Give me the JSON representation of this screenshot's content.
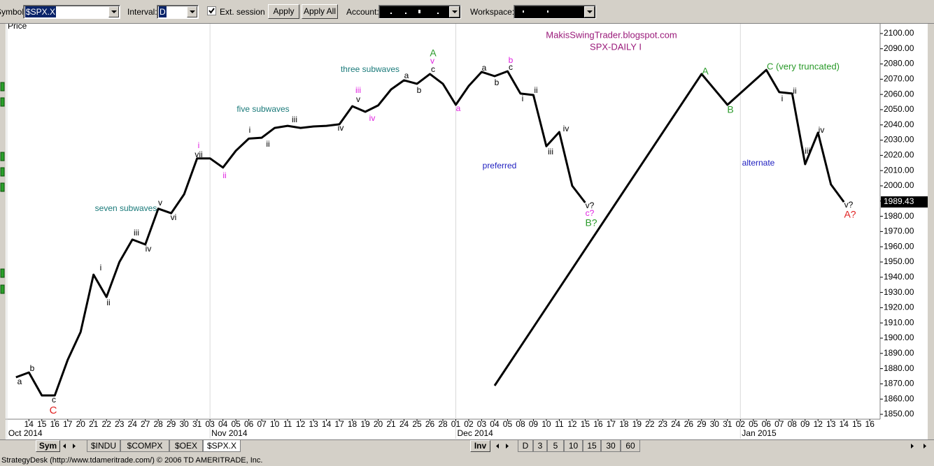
{
  "toolbar": {
    "symbol_label": "Symbol:",
    "symbol": "$SPX.X",
    "interval_label": "Interval:",
    "interval": "D",
    "ext_session": "Ext. session",
    "apply": "Apply",
    "apply_all": "Apply All",
    "account_label": "Account:",
    "workspace_label": "Workspace:"
  },
  "chart_data": {
    "type": "line",
    "y_axis_label": "Price",
    "ylim": [
      1846.8,
      2106.4
    ],
    "yticks": [
      {
        "value": 1850,
        "label": "1850.00"
      },
      {
        "value": 1860,
        "label": "1860.00"
      },
      {
        "value": 1870,
        "label": "1870.00"
      },
      {
        "value": 1880,
        "label": "1880.00"
      },
      {
        "value": 1890,
        "label": "1890.00"
      },
      {
        "value": 1900,
        "label": "1900.00"
      },
      {
        "value": 1910,
        "label": "1910.00"
      },
      {
        "value": 1920,
        "label": "1920.00"
      },
      {
        "value": 1930,
        "label": "1930.00"
      },
      {
        "value": 1940,
        "label": "1940.00"
      },
      {
        "value": 1950,
        "label": "1950.00"
      },
      {
        "value": 1960,
        "label": "1960.00"
      },
      {
        "value": 1970,
        "label": "1970.00"
      },
      {
        "value": 1980,
        "label": "1980.00"
      },
      {
        "value": 1990,
        "label": "1990.00"
      },
      {
        "value": 2000,
        "label": "2000.00"
      },
      {
        "value": 2010,
        "label": "2010.00"
      },
      {
        "value": 2020,
        "label": "2020.00"
      },
      {
        "value": 2030,
        "label": "2030.00"
      },
      {
        "value": 2040,
        "label": "2040.00"
      },
      {
        "value": 2050,
        "label": "2050.00"
      },
      {
        "value": 2060,
        "label": "2060.00"
      },
      {
        "value": 2070,
        "label": "2070.00"
      },
      {
        "value": 2080,
        "label": "2080.00"
      },
      {
        "value": 2090,
        "label": "2090.00"
      },
      {
        "value": 2100,
        "label": "2100.00"
      }
    ],
    "xlim": [
      -0.8,
      66.8
    ],
    "xticks": [
      {
        "value": 1,
        "label": "14"
      },
      {
        "value": 2,
        "label": "15"
      },
      {
        "value": 3,
        "label": "16"
      },
      {
        "value": 4,
        "label": "17"
      },
      {
        "value": 5,
        "label": "20"
      },
      {
        "value": 6,
        "label": "21"
      },
      {
        "value": 7,
        "label": "22"
      },
      {
        "value": 8,
        "label": "23"
      },
      {
        "value": 9,
        "label": "24"
      },
      {
        "value": 10,
        "label": "27"
      },
      {
        "value": 11,
        "label": "28"
      },
      {
        "value": 12,
        "label": "29"
      },
      {
        "value": 13,
        "label": "30"
      },
      {
        "value": 14,
        "label": "31"
      },
      {
        "value": 15,
        "label": "03"
      },
      {
        "value": 16,
        "label": "04"
      },
      {
        "value": 17,
        "label": "05"
      },
      {
        "value": 18,
        "label": "06"
      },
      {
        "value": 19,
        "label": "07"
      },
      {
        "value": 20,
        "label": "10"
      },
      {
        "value": 21,
        "label": "11"
      },
      {
        "value": 22,
        "label": "12"
      },
      {
        "value": 23,
        "label": "13"
      },
      {
        "value": 24,
        "label": "14"
      },
      {
        "value": 25,
        "label": "17"
      },
      {
        "value": 26,
        "label": "18"
      },
      {
        "value": 27,
        "label": "19"
      },
      {
        "value": 28,
        "label": "20"
      },
      {
        "value": 29,
        "label": "21"
      },
      {
        "value": 30,
        "label": "24"
      },
      {
        "value": 31,
        "label": "25"
      },
      {
        "value": 32,
        "label": "26"
      },
      {
        "value": 33,
        "label": "28"
      },
      {
        "value": 34,
        "label": "01"
      },
      {
        "value": 35,
        "label": "02"
      },
      {
        "value": 36,
        "label": "03"
      },
      {
        "value": 37,
        "label": "04"
      },
      {
        "value": 38,
        "label": "05"
      },
      {
        "value": 39,
        "label": "08"
      },
      {
        "value": 40,
        "label": "09"
      },
      {
        "value": 41,
        "label": "10"
      },
      {
        "value": 42,
        "label": "11"
      },
      {
        "value": 43,
        "label": "12"
      },
      {
        "value": 44,
        "label": "15"
      },
      {
        "value": 45,
        "label": "16"
      },
      {
        "value": 46,
        "label": "17"
      },
      {
        "value": 47,
        "label": "18"
      },
      {
        "value": 48,
        "label": "19"
      },
      {
        "value": 49,
        "label": "22"
      },
      {
        "value": 50,
        "label": "23"
      },
      {
        "value": 51,
        "label": "24"
      },
      {
        "value": 52,
        "label": "26"
      },
      {
        "value": 53,
        "label": "29"
      },
      {
        "value": 54,
        "label": "30"
      },
      {
        "value": 55,
        "label": "31"
      },
      {
        "value": 56,
        "label": "02"
      },
      {
        "value": 57,
        "label": "05"
      },
      {
        "value": 58,
        "label": "06"
      },
      {
        "value": 59,
        "label": "07"
      },
      {
        "value": 60,
        "label": "08"
      },
      {
        "value": 61,
        "label": "09"
      },
      {
        "value": 62,
        "label": "12"
      },
      {
        "value": 63,
        "label": "13"
      },
      {
        "value": 64,
        "label": "14"
      },
      {
        "value": 65,
        "label": "15"
      },
      {
        "value": 66,
        "label": "16"
      }
    ],
    "month_ticks": [
      {
        "value": -0.7,
        "label": "Oct 2014"
      },
      {
        "value": 15,
        "label": "Nov 2014"
      },
      {
        "value": 34,
        "label": "Dec 2014"
      },
      {
        "value": 56,
        "label": "Jan 2015"
      }
    ],
    "series": [
      {
        "color": "#000000",
        "x": [
          0,
          1,
          2,
          3,
          4,
          5,
          6,
          7,
          8,
          9,
          10,
          11,
          12,
          13,
          14,
          15,
          16,
          17,
          18,
          19,
          20,
          21,
          22,
          23,
          24,
          25,
          26,
          27,
          28,
          29,
          30,
          31,
          32,
          33,
          34,
          35,
          36,
          37,
          38,
          39,
          40,
          41,
          42,
          43,
          44
        ],
        "values": [
          1874.3,
          1877.5,
          1862.4,
          1862.4,
          1885.8,
          1904,
          1941.7,
          1927,
          1950,
          1964.7,
          1961.5,
          1985,
          1982,
          1994.5,
          2018,
          2018,
          2012,
          2023,
          2031,
          2031.6,
          2038,
          2039.4,
          2038,
          2039,
          2039.4,
          2040.4,
          2052.3,
          2048.6,
          2052.8,
          2063.3,
          2069.3,
          2067,
          2073.4,
          2067,
          2053.2,
          2065.6,
          2074.8,
          2072,
          2075.2,
          2060.6,
          2059.6,
          2026,
          2035.3,
          2000,
          1989
        ]
      },
      {
        "color": "#000000",
        "x": [
          37,
          53,
          55,
          58,
          59,
          60,
          61,
          62,
          63,
          64
        ],
        "values": [
          1868.8,
          2073.4,
          2053.2,
          2076.1,
          2061.5,
          2060.6,
          2014.2,
          2034.9,
          2000.9,
          1989.4
        ]
      }
    ],
    "last_price": 1989.43,
    "annotations": [
      {
        "text": "a",
        "color": "#000000"
      },
      {
        "text": "b",
        "color": "#000000"
      },
      {
        "text": "c",
        "color": "#000000"
      },
      {
        "text": "C",
        "color": "#e02020"
      },
      {
        "text": "i",
        "color": "#000000"
      },
      {
        "text": "ii",
        "color": "#000000"
      },
      {
        "text": "iii",
        "color": "#000000"
      },
      {
        "text": "iv",
        "color": "#000000"
      },
      {
        "text": "v",
        "color": "#000000"
      },
      {
        "text": "vi",
        "color": "#000000"
      },
      {
        "text": "seven subwaves",
        "color": "#1a7a7a"
      },
      {
        "text": "i",
        "color": "#e020e0"
      },
      {
        "text": "vii",
        "color": "#000000"
      },
      {
        "text": "ii",
        "color": "#e020e0"
      },
      {
        "text": "i",
        "color": "#000000"
      },
      {
        "text": "ii",
        "color": "#000000"
      },
      {
        "text": "iii",
        "color": "#000000"
      },
      {
        "text": "five subwaves",
        "color": "#1a7a7a"
      },
      {
        "text": "iv",
        "color": "#000000"
      },
      {
        "text": "iii",
        "color": "#e020e0"
      },
      {
        "text": "v",
        "color": "#000000"
      },
      {
        "text": "iv",
        "color": "#e020e0"
      },
      {
        "text": "three subwaves",
        "color": "#1a7a7a"
      },
      {
        "text": "a",
        "color": "#000000"
      },
      {
        "text": "b",
        "color": "#000000"
      },
      {
        "text": "A",
        "color": "#2a9a2a"
      },
      {
        "text": "v",
        "color": "#e020e0"
      },
      {
        "text": "c",
        "color": "#000000"
      },
      {
        "text": "a",
        "color": "#e020e0"
      },
      {
        "text": "a",
        "color": "#000000"
      },
      {
        "text": "b",
        "color": "#000000"
      },
      {
        "text": "b",
        "color": "#e020e0"
      },
      {
        "text": "c",
        "color": "#000000"
      },
      {
        "text": "i",
        "color": "#000000"
      },
      {
        "text": "ii",
        "color": "#000000"
      },
      {
        "text": "iii",
        "color": "#000000"
      },
      {
        "text": "iv",
        "color": "#000000"
      },
      {
        "text": "preferred",
        "color": "#2020c0"
      },
      {
        "text": "v?",
        "color": "#000000"
      },
      {
        "text": "c?",
        "color": "#e020e0"
      },
      {
        "text": "B?",
        "color": "#2a9a2a"
      },
      {
        "text": "MakisSwingTrader.blogspot.com",
        "color": "#9a1a7a"
      },
      {
        "text": "SPX-DAILY I",
        "color": "#9a1a7a"
      },
      {
        "text": "A",
        "color": "#2a9a2a"
      },
      {
        "text": "B",
        "color": "#2a9a2a"
      },
      {
        "text": "C (very truncated)",
        "color": "#2a9a2a"
      },
      {
        "text": "i",
        "color": "#000000"
      },
      {
        "text": "ii",
        "color": "#000000"
      },
      {
        "text": "iii",
        "color": "#000000"
      },
      {
        "text": "iv",
        "color": "#000000"
      },
      {
        "text": "alternate",
        "color": "#2020c0"
      },
      {
        "text": "v?",
        "color": "#000000"
      },
      {
        "text": "A?",
        "color": "#e02020"
      }
    ]
  },
  "symbol_tabs": {
    "button": "Sym",
    "tabs": [
      "$INDU",
      "$COMPX",
      "$OEX",
      "$SPX.X"
    ]
  },
  "interval_tabs": {
    "button": "Inv",
    "tabs": [
      "D",
      "3",
      "5",
      "10",
      "15",
      "30",
      "60"
    ]
  },
  "status_bar": "StrategyDesk (http://www.tdameritrade.com/) © 2006 TD AMERITRADE, Inc."
}
